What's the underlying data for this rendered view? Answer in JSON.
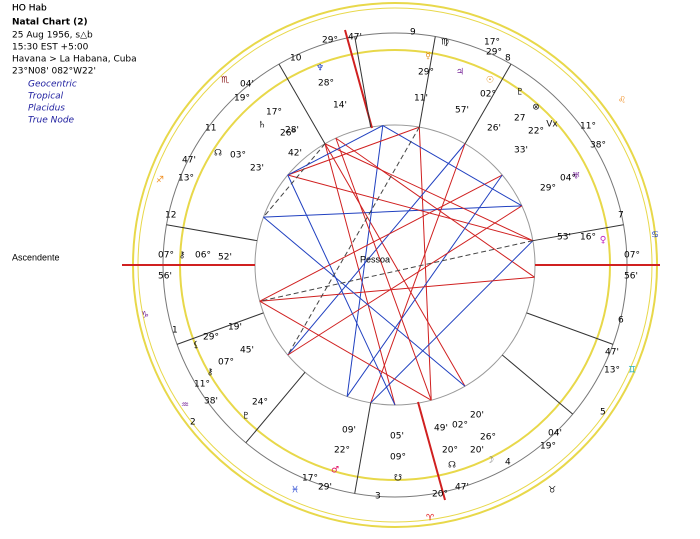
{
  "header": {
    "name": "HO Hab",
    "chart": "Natal Chart (2)",
    "date": "25 Aug 1956, s△b",
    "time": "15:30  EST +5:00",
    "place": "Havana > La Habana, Cuba",
    "coords": "23°N08' 082°W22'",
    "options": [
      "Geocentric",
      "Tropical",
      "Placidus",
      "True Node"
    ]
  },
  "ascendant_label": "Ascendente",
  "center_label": "Pessoa",
  "house_numbers": [
    "10",
    "9",
    "8",
    "11",
    "12",
    "1",
    "2",
    "3",
    "4",
    "5",
    "6",
    "7"
  ],
  "cusp_labels": [
    "29°",
    "47'",
    "17°",
    "29°",
    "04'",
    "19°",
    "11°",
    "38°",
    "47'",
    "13°",
    "07°",
    "56'",
    "07°",
    "56'",
    "11°",
    "38'",
    "47'",
    "13°",
    "04'",
    "19°",
    "17°",
    "29'",
    "3",
    "20°",
    "47'"
  ],
  "signs": [
    {
      "glyph": "♏",
      "color": "#8b1a1a"
    },
    {
      "glyph": "♐",
      "color": "#f08c1e"
    },
    {
      "glyph": "♑",
      "color": "#7a2a9a"
    },
    {
      "glyph": "♒",
      "color": "#7a2a9a"
    },
    {
      "glyph": "♓",
      "color": "#2040d0"
    },
    {
      "glyph": "♈",
      "color": "#e01010"
    },
    {
      "glyph": "♉",
      "color": "#111111"
    },
    {
      "glyph": "♊",
      "color": "#20b0c0"
    },
    {
      "glyph": "♋",
      "color": "#2040c0"
    },
    {
      "glyph": "♌",
      "color": "#f08c1e"
    },
    {
      "glyph": "♍",
      "color": "#111111"
    }
  ],
  "planets": [
    {
      "glyph": "♆",
      "color": "#2040c0"
    },
    {
      "glyph": "☿",
      "color": "#e08a10"
    },
    {
      "glyph": "♃",
      "color": "#7a2a9a"
    },
    {
      "glyph": "☉",
      "color": "#e08a10"
    },
    {
      "glyph": "♇",
      "color": "#111111"
    },
    {
      "glyph": "⊗",
      "color": "#111111"
    },
    {
      "glyph": "Vx",
      "color": "#111111"
    },
    {
      "glyph": "♄",
      "color": "#111111"
    },
    {
      "glyph": "☊",
      "color": "#111111"
    },
    {
      "glyph": "⚷",
      "color": "#111111"
    },
    {
      "glyph": "♅",
      "color": "#7a2a9a"
    },
    {
      "glyph": "♀",
      "color": "#c020c0"
    },
    {
      "glyph": "⚸",
      "color": "#111111"
    },
    {
      "glyph": "⚷",
      "color": "#111111"
    },
    {
      "glyph": "♇",
      "color": "#111111"
    },
    {
      "glyph": "♂",
      "color": "#e01060"
    },
    {
      "glyph": "☋",
      "color": "#111111"
    },
    {
      "glyph": "☊",
      "color": "#111111"
    },
    {
      "glyph": "☽",
      "color": "#777777"
    }
  ],
  "planet_degrees": [
    "28°",
    "14'",
    "29°",
    "11'",
    "02°",
    "57'",
    "26'",
    "27",
    "22°",
    "33'",
    "26°",
    "42'",
    "17°",
    "28'",
    "03°",
    "23'",
    "06°",
    "52'",
    "29°",
    "04°",
    "16°",
    "53'",
    "29°",
    "19'",
    "07°",
    "45'",
    "24°",
    "22°",
    "09'",
    "09°",
    "05'",
    "49'",
    "20°",
    "26°",
    "20'",
    "02°",
    "20'"
  ]
}
